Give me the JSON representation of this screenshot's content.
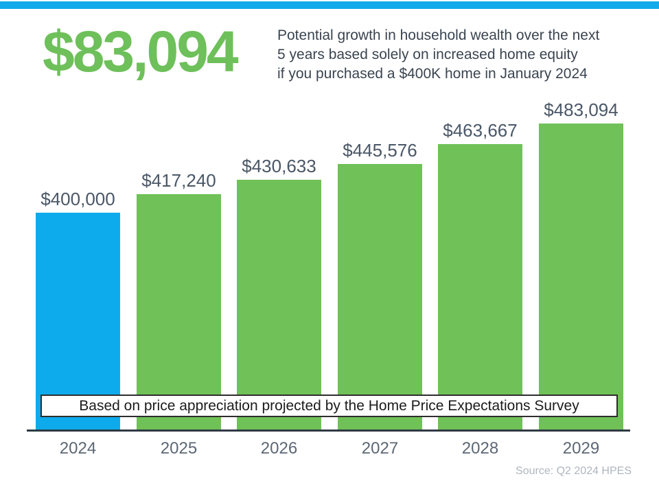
{
  "page": {
    "background": "#ffffff",
    "top_stripe_color": "#12aaea"
  },
  "header": {
    "headline": "$83,094",
    "headline_color": "#6ec05a",
    "description_lines": [
      "Potential growth in household wealth over the next",
      "5 years based solely on increased home equity",
      "if you purchased a $400K home in January 2024"
    ]
  },
  "chart_data": {
    "type": "bar",
    "categories": [
      "2024",
      "2025",
      "2026",
      "2027",
      "2028",
      "2029"
    ],
    "values": [
      400000,
      417240,
      430633,
      445576,
      463667,
      483094
    ],
    "value_labels": [
      "$400,000",
      "$417,240",
      "$430,633",
      "$445,576",
      "$463,667",
      "$483,094"
    ],
    "bar_colors": [
      "#0eabec",
      "#70c158",
      "#70c158",
      "#70c158",
      "#70c158",
      "#70c158"
    ],
    "title": "",
    "xlabel": "",
    "ylabel": "",
    "ylim": [
      198000,
      483094
    ],
    "grid": false,
    "legend": "none",
    "annotation": "Based on price appreciation projected by the Home Price Expectations Survey"
  },
  "footer": {
    "source": "Source: Q2 2024 HPES"
  }
}
